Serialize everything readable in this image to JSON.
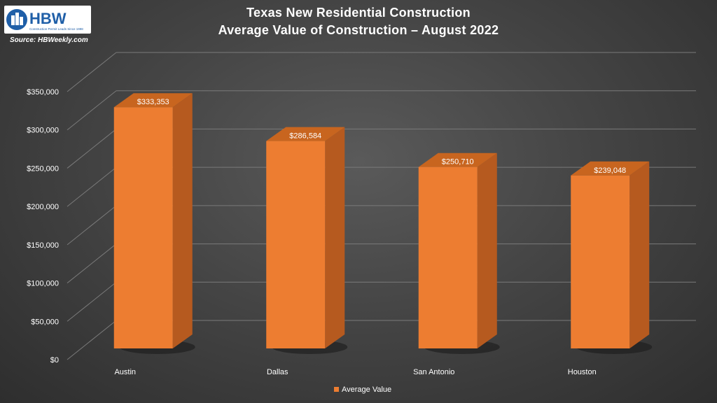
{
  "logo": {
    "text": "HBW",
    "tagline": "Construction Permit Leads Since 1998"
  },
  "source": "Source: HBWeekly.com",
  "chart_data": {
    "type": "bar",
    "title_line1": "Texas New Residential Construction",
    "title_line2": "Average Value of Construction – August 2022",
    "categories": [
      "Austin",
      "Dallas",
      "San Antonio",
      "Houston"
    ],
    "series": [
      {
        "name": "Average Value",
        "values": [
          333353,
          286584,
          250710,
          239048
        ],
        "labels": [
          "$333,353",
          "$286,584",
          "$250,710",
          "$239,048"
        ],
        "color": "#ed7d31"
      }
    ],
    "ylim": [
      0,
      350000
    ],
    "yticks": [
      0,
      50000,
      100000,
      150000,
      200000,
      250000,
      300000,
      350000
    ],
    "ytick_labels": [
      "$0",
      "$50,000",
      "$100,000",
      "$150,000",
      "$200,000",
      "$250,000",
      "$300,000",
      "$350,000"
    ],
    "grid": true,
    "legend_position": "bottom",
    "colors": {
      "bar_front": "#ed7d31",
      "bar_side": "#b65a1f",
      "bar_top": "#c8651f",
      "grid": "#7a7a7a",
      "text": "#ffffff"
    }
  }
}
